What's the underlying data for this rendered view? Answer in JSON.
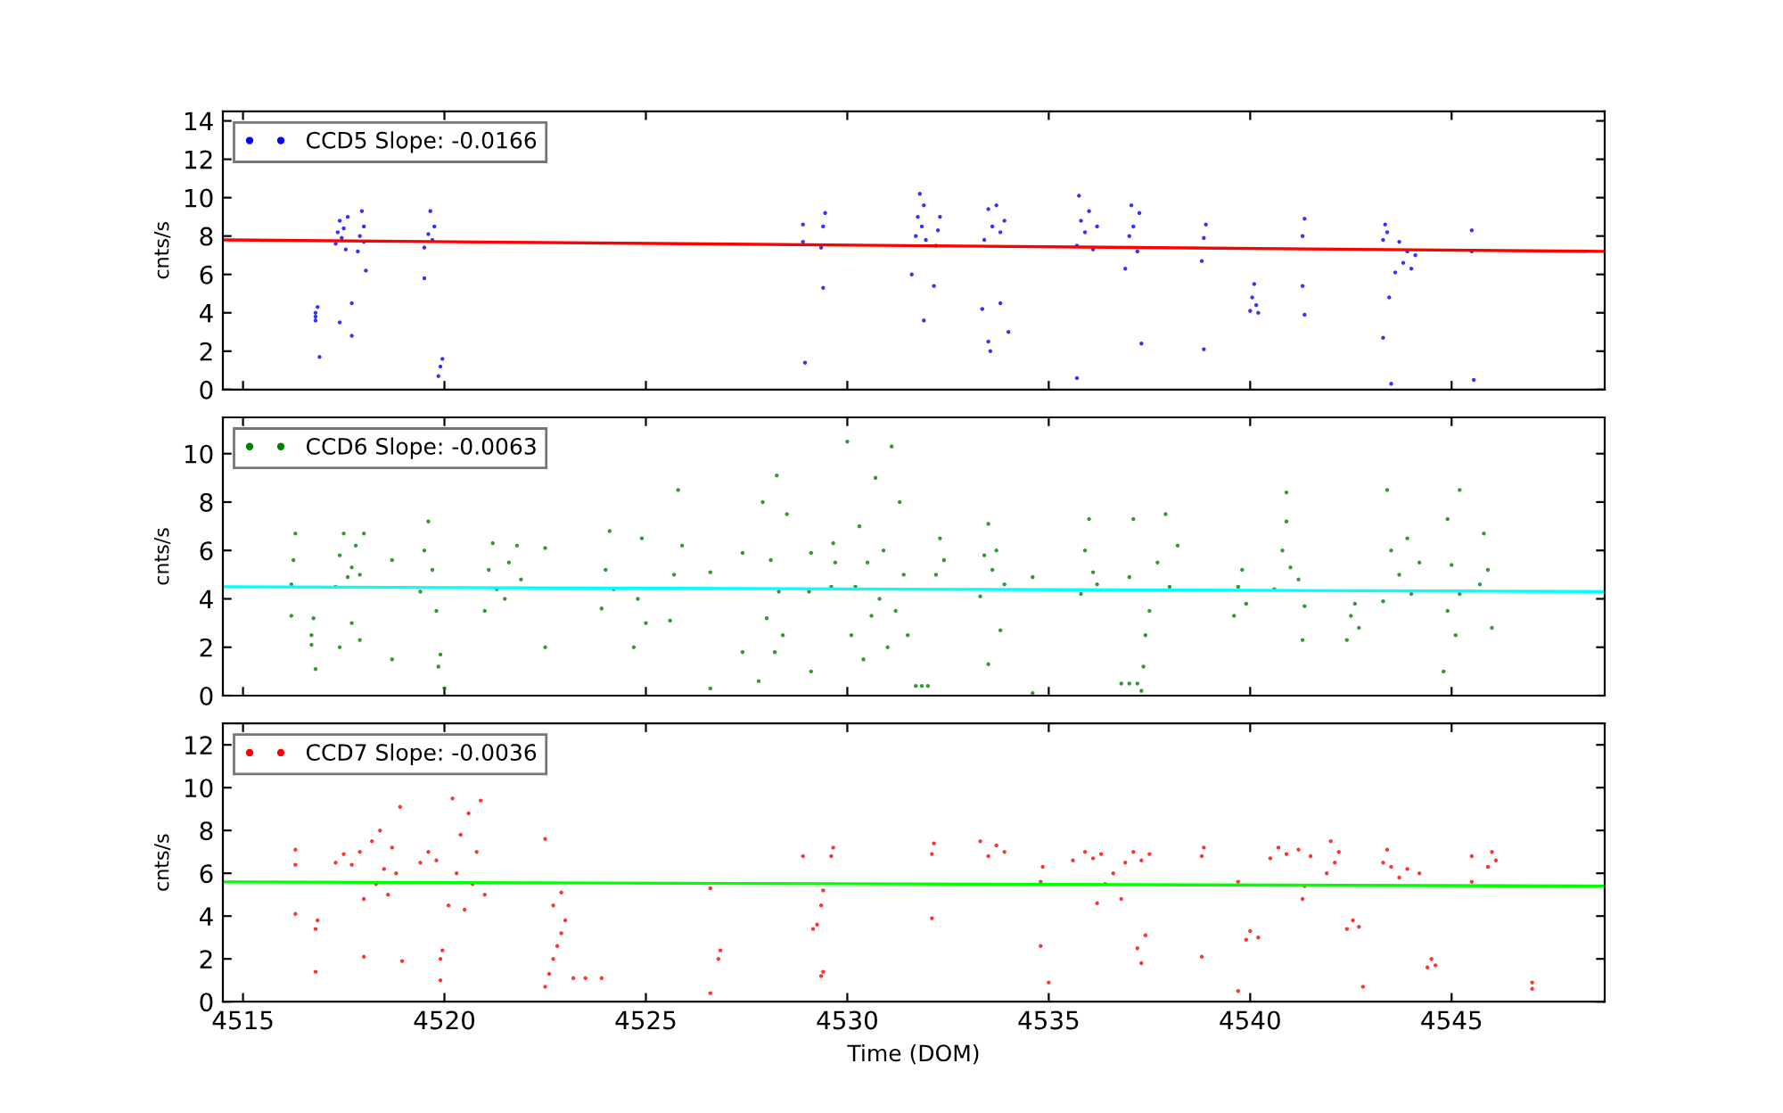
{
  "chart_data": [
    {
      "type": "scatter",
      "ylabel": "cnts/s",
      "xlim": [
        4514.5,
        4548.8
      ],
      "ylim": [
        0,
        14.5
      ],
      "xticks": [
        4515,
        4520,
        4525,
        4530,
        4535,
        4540,
        4545
      ],
      "yticks": [
        0,
        2,
        4,
        6,
        8,
        10,
        12,
        14
      ],
      "tick_labels": "y",
      "legend": "top left",
      "grid": false,
      "series": [
        {
          "name": "CCD5 Slope: -0.0166",
          "marker": "circle",
          "color": "#0000ff",
          "x": [
            4516.8,
            4516.8,
            4516.85,
            4516.8,
            4516.9,
            4517.3,
            4517.35,
            4517.4,
            4517.45,
            4517.5,
            4517.55,
            4517.6,
            4517.4,
            4517.7,
            4517.7,
            4517.85,
            4517.9,
            4517.95,
            4518.0,
            4518.0,
            4518.05,
            4519.5,
            4519.6,
            4519.65,
            4519.7,
            4519.75,
            4519.5,
            4519.85,
            4519.9,
            4519.95,
            4528.9,
            4528.9,
            4528.95,
            4529.35,
            4529.4,
            4529.45,
            4529.4,
            4531.7,
            4531.75,
            4531.8,
            4531.85,
            4531.9,
            4531.95,
            4531.6,
            4531.9,
            4532.2,
            4532.25,
            4532.3,
            4532.15,
            4533.4,
            4533.5,
            4533.6,
            4533.7,
            4533.8,
            4533.9,
            4533.35,
            4533.5,
            4533.55,
            4533.8,
            4534.0,
            4535.7,
            4535.8,
            4535.75,
            4535.9,
            4536.0,
            4536.1,
            4536.2,
            4535.7,
            4536.9,
            4537.0,
            4537.05,
            4537.1,
            4537.2,
            4537.25,
            4537.3,
            4538.8,
            4538.85,
            4538.9,
            4538.85,
            4540.0,
            4540.05,
            4540.1,
            4540.15,
            4540.2,
            4541.3,
            4541.35,
            4541.3,
            4541.35,
            4543.3,
            4543.35,
            4543.4,
            4543.3,
            4543.45,
            4543.5,
            4543.6,
            4543.7,
            4543.8,
            4543.9,
            4544.0,
            4544.1,
            4545.5,
            4545.5,
            4545.55
          ],
          "values": [
            3.6,
            4.0,
            4.3,
            3.8,
            1.7,
            7.6,
            8.2,
            8.8,
            7.9,
            8.4,
            7.3,
            9.0,
            3.5,
            4.5,
            2.8,
            7.2,
            8.0,
            9.3,
            8.5,
            7.7,
            6.2,
            7.4,
            8.1,
            9.3,
            7.8,
            8.5,
            5.8,
            0.7,
            1.2,
            1.6,
            7.7,
            8.6,
            1.4,
            7.4,
            8.5,
            9.2,
            5.3,
            8.0,
            9.0,
            10.2,
            8.5,
            9.6,
            7.8,
            6.0,
            3.6,
            7.5,
            8.3,
            9.0,
            5.4,
            7.8,
            9.4,
            8.5,
            9.6,
            8.2,
            8.8,
            4.2,
            2.5,
            2.0,
            4.5,
            3.0,
            7.5,
            8.8,
            10.1,
            8.2,
            9.3,
            7.3,
            8.5,
            0.6,
            6.3,
            8.0,
            9.6,
            8.5,
            7.2,
            9.2,
            2.4,
            6.7,
            7.9,
            8.6,
            2.1,
            4.1,
            4.8,
            5.5,
            4.4,
            4.0,
            8.0,
            8.9,
            5.4,
            3.9,
            7.8,
            8.6,
            8.2,
            2.7,
            4.8,
            0.3,
            6.1,
            7.7,
            6.6,
            7.2,
            6.3,
            7.0,
            7.2,
            8.3,
            0.5
          ]
        },
        {
          "type": "line",
          "marker": "none",
          "color": "#ff0000",
          "x": [
            4514.5,
            4548.8
          ],
          "values": [
            7.8,
            7.2
          ]
        }
      ]
    },
    {
      "type": "scatter",
      "ylabel": "cnts/s",
      "xlim": [
        4514.5,
        4548.8
      ],
      "ylim": [
        0,
        11.5
      ],
      "xticks": [
        4515,
        4520,
        4525,
        4530,
        4535,
        4540,
        4545
      ],
      "yticks": [
        0,
        2,
        4,
        6,
        8,
        10
      ],
      "tick_labels": "y",
      "legend": "top left",
      "grid": false,
      "series": [
        {
          "name": "CCD6 Slope: -0.0063",
          "marker": "circle",
          "color": "#008000",
          "x": [
            4516.2,
            4516.25,
            4516.3,
            4516.2,
            4516.7,
            4516.75,
            4516.7,
            4516.8,
            4517.3,
            4517.4,
            4517.5,
            4517.6,
            4517.7,
            4517.8,
            4517.9,
            4518.0,
            4517.4,
            4517.9,
            4517.7,
            4518.7,
            4518.7,
            4519.4,
            4519.5,
            4519.6,
            4519.7,
            4519.8,
            4519.85,
            4519.9,
            4520.0,
            4521.0,
            4521.1,
            4521.2,
            4521.3,
            4521.5,
            4521.6,
            4521.8,
            4521.9,
            4522.5,
            4522.5,
            4523.9,
            4524.0,
            4524.1,
            4524.2,
            4524.7,
            4524.8,
            4524.9,
            4525.0,
            4525.6,
            4525.7,
            4525.8,
            4525.9,
            4526.6,
            4526.6,
            4527.4,
            4527.4,
            4527.8,
            4527.9,
            4528.0,
            4528.1,
            4528.2,
            4528.25,
            4528.3,
            4528.4,
            4528.5,
            4529.1,
            4529.1,
            4529.05,
            4529.6,
            4529.65,
            4529.7,
            4530.0,
            4530.1,
            4530.2,
            4530.3,
            4530.4,
            4530.5,
            4530.6,
            4530.7,
            4530.8,
            4530.9,
            4531.0,
            4531.1,
            4531.2,
            4531.3,
            4531.4,
            4531.5,
            4531.7,
            4531.85,
            4532.0,
            4532.2,
            4532.3,
            4532.4,
            4533.3,
            4533.4,
            4533.5,
            4533.6,
            4533.7,
            4533.9,
            4533.5,
            4533.8,
            4534.6,
            4534.6,
            4535.8,
            4535.9,
            4536.0,
            4536.1,
            4536.2,
            4536.8,
            4537.0,
            4537.2,
            4537.0,
            4537.1,
            4537.3,
            4537.35,
            4537.4,
            4537.5,
            4537.7,
            4537.9,
            4538.0,
            4538.2,
            4539.6,
            4539.7,
            4539.8,
            4539.9,
            4540.6,
            4540.8,
            4540.9,
            4541.0,
            4541.2,
            4540.9,
            4541.3,
            4541.35,
            4542.4,
            4542.5,
            4542.6,
            4542.7,
            4543.3,
            4543.5,
            4543.7,
            4543.9,
            4544.0,
            4544.2,
            4543.4,
            4544.8,
            4544.9,
            4545.0,
            4545.1,
            4545.2,
            4544.9,
            4545.2,
            4545.7,
            4545.8,
            4545.9,
            4546.0
          ],
          "values": [
            4.6,
            5.6,
            6.7,
            3.3,
            2.5,
            3.2,
            2.1,
            1.1,
            4.5,
            5.8,
            6.7,
            4.9,
            5.3,
            6.2,
            5.0,
            6.7,
            2.0,
            2.3,
            3.0,
            5.6,
            1.5,
            4.3,
            6.0,
            7.2,
            5.2,
            3.5,
            1.2,
            1.7,
            0.3,
            3.5,
            5.2,
            6.3,
            4.4,
            4.0,
            5.5,
            6.2,
            4.8,
            6.1,
            2.0,
            3.6,
            5.2,
            6.8,
            4.4,
            2.0,
            4.0,
            6.5,
            3.0,
            3.1,
            5.0,
            8.5,
            6.2,
            5.1,
            0.3,
            5.9,
            1.8,
            0.6,
            8.0,
            3.2,
            5.6,
            1.8,
            9.1,
            4.3,
            2.5,
            7.5,
            1.0,
            5.9,
            4.3,
            4.5,
            6.3,
            5.5,
            10.5,
            2.5,
            4.5,
            7.0,
            1.5,
            5.5,
            3.3,
            9.0,
            4.0,
            6.0,
            2.0,
            10.3,
            3.5,
            8.0,
            5.0,
            2.5,
            0.4,
            0.4,
            0.4,
            5.0,
            6.5,
            5.6,
            4.1,
            5.8,
            7.1,
            5.2,
            6.0,
            4.6,
            1.3,
            2.7,
            4.9,
            0.1,
            4.2,
            6.0,
            7.3,
            5.1,
            4.6,
            0.5,
            0.5,
            0.5,
            4.9,
            7.3,
            0.2,
            1.2,
            2.5,
            3.5,
            5.5,
            7.5,
            4.5,
            6.2,
            3.3,
            4.5,
            5.2,
            3.8,
            4.4,
            6.0,
            7.2,
            5.3,
            4.8,
            8.4,
            2.3,
            3.7,
            2.3,
            3.3,
            3.8,
            2.8,
            3.9,
            6.0,
            5.0,
            6.5,
            4.2,
            5.5,
            8.5,
            1.0,
            3.5,
            5.4,
            2.5,
            4.2,
            7.3,
            8.5,
            4.6,
            6.7,
            5.2,
            2.8
          ]
        },
        {
          "type": "line",
          "marker": "none",
          "color": "#00ffff",
          "x": [
            4514.5,
            4548.8
          ],
          "values": [
            4.5,
            4.3
          ]
        }
      ]
    },
    {
      "type": "scatter",
      "ylabel": "cnts/s",
      "xlabel": "Time (DOM)",
      "xlim": [
        4514.5,
        4548.8
      ],
      "ylim": [
        0,
        13
      ],
      "xticks": [
        4515,
        4520,
        4525,
        4530,
        4535,
        4540,
        4545
      ],
      "yticks": [
        0,
        2,
        4,
        6,
        8,
        10,
        12
      ],
      "legend": "top left",
      "grid": false,
      "series": [
        {
          "name": "CCD7 Slope: -0.0036",
          "marker": "circle",
          "color": "#ff0000",
          "x": [
            4516.3,
            4516.3,
            4516.3,
            4516.8,
            4516.85,
            4516.8,
            4517.3,
            4517.5,
            4517.7,
            4517.9,
            4518.0,
            4518.2,
            4518.3,
            4518.4,
            4518.5,
            4518.6,
            4518.7,
            4518.8,
            4518.9,
            4518.0,
            4518.95,
            4519.4,
            4519.6,
            4519.8,
            4519.9,
            4519.95,
            4519.9,
            4520.1,
            4520.2,
            4520.3,
            4520.4,
            4520.5,
            4520.6,
            4520.7,
            4520.8,
            4520.9,
            4521.0,
            4522.5,
            4522.6,
            4522.7,
            4522.8,
            4522.9,
            4523.0,
            4522.7,
            4522.9,
            4522.5,
            4523.2,
            4523.5,
            4523.9,
            4526.6,
            4526.6,
            4526.8,
            4526.85,
            4528.9,
            4529.15,
            4529.25,
            4529.35,
            4529.4,
            4529.35,
            4529.4,
            4529.6,
            4529.65,
            4532.1,
            4532.15,
            4532.1,
            4533.3,
            4533.5,
            4533.7,
            4533.9,
            4534.8,
            4534.85,
            4534.8,
            4535.0,
            4535.6,
            4535.9,
            4536.1,
            4536.3,
            4536.2,
            4536.4,
            4536.6,
            4536.8,
            4536.9,
            4537.1,
            4537.3,
            4537.5,
            4537.2,
            4537.4,
            4537.3,
            4538.8,
            4538.85,
            4538.8,
            4539.9,
            4540.0,
            4540.2,
            4539.7,
            4539.7,
            4540.5,
            4540.7,
            4540.9,
            4541.2,
            4541.3,
            4541.35,
            4541.5,
            4541.9,
            4542.0,
            4542.1,
            4542.2,
            4542.4,
            4542.55,
            4542.7,
            4542.8,
            4543.3,
            4543.4,
            4543.5,
            4543.7,
            4543.9,
            4544.2,
            4544.4,
            4544.5,
            4544.6,
            4545.5,
            4545.5,
            4545.9,
            4546.0,
            4546.1,
            4547.0,
            4547.0
          ],
          "values": [
            6.4,
            7.1,
            4.1,
            3.4,
            3.8,
            1.4,
            6.5,
            6.9,
            6.4,
            7.0,
            4.8,
            7.5,
            5.5,
            8.0,
            6.2,
            5.0,
            7.2,
            6.0,
            9.1,
            2.1,
            1.9,
            6.5,
            7.0,
            6.6,
            2.0,
            2.4,
            1.0,
            4.5,
            9.5,
            6.0,
            7.8,
            4.3,
            8.8,
            5.5,
            7.0,
            9.4,
            5.0,
            0.7,
            1.3,
            2.0,
            2.6,
            3.2,
            3.8,
            4.5,
            5.1,
            7.6,
            1.1,
            1.1,
            1.1,
            0.4,
            5.3,
            2.0,
            2.4,
            6.8,
            3.4,
            3.6,
            1.2,
            1.4,
            4.5,
            5.2,
            6.8,
            7.2,
            6.9,
            7.4,
            3.9,
            7.5,
            6.8,
            7.3,
            7.0,
            5.6,
            6.3,
            2.6,
            0.9,
            6.6,
            7.0,
            6.7,
            6.9,
            4.6,
            5.5,
            6.0,
            4.8,
            6.5,
            7.0,
            6.6,
            6.9,
            2.5,
            3.1,
            1.8,
            6.8,
            7.2,
            2.1,
            2.9,
            3.3,
            3.0,
            5.6,
            0.5,
            6.7,
            7.2,
            6.9,
            7.1,
            4.8,
            5.4,
            6.8,
            6.0,
            7.5,
            6.5,
            7.0,
            3.4,
            3.8,
            3.5,
            0.7,
            6.5,
            7.1,
            6.3,
            5.8,
            6.2,
            6.0,
            1.6,
            2.0,
            1.7,
            6.8,
            5.6,
            6.3,
            7.0,
            6.6,
            0.6,
            0.9
          ]
        },
        {
          "type": "line",
          "marker": "none",
          "color": "#00ff00",
          "x": [
            4514.5,
            4548.8
          ],
          "values": [
            5.6,
            5.4
          ]
        }
      ]
    }
  ]
}
